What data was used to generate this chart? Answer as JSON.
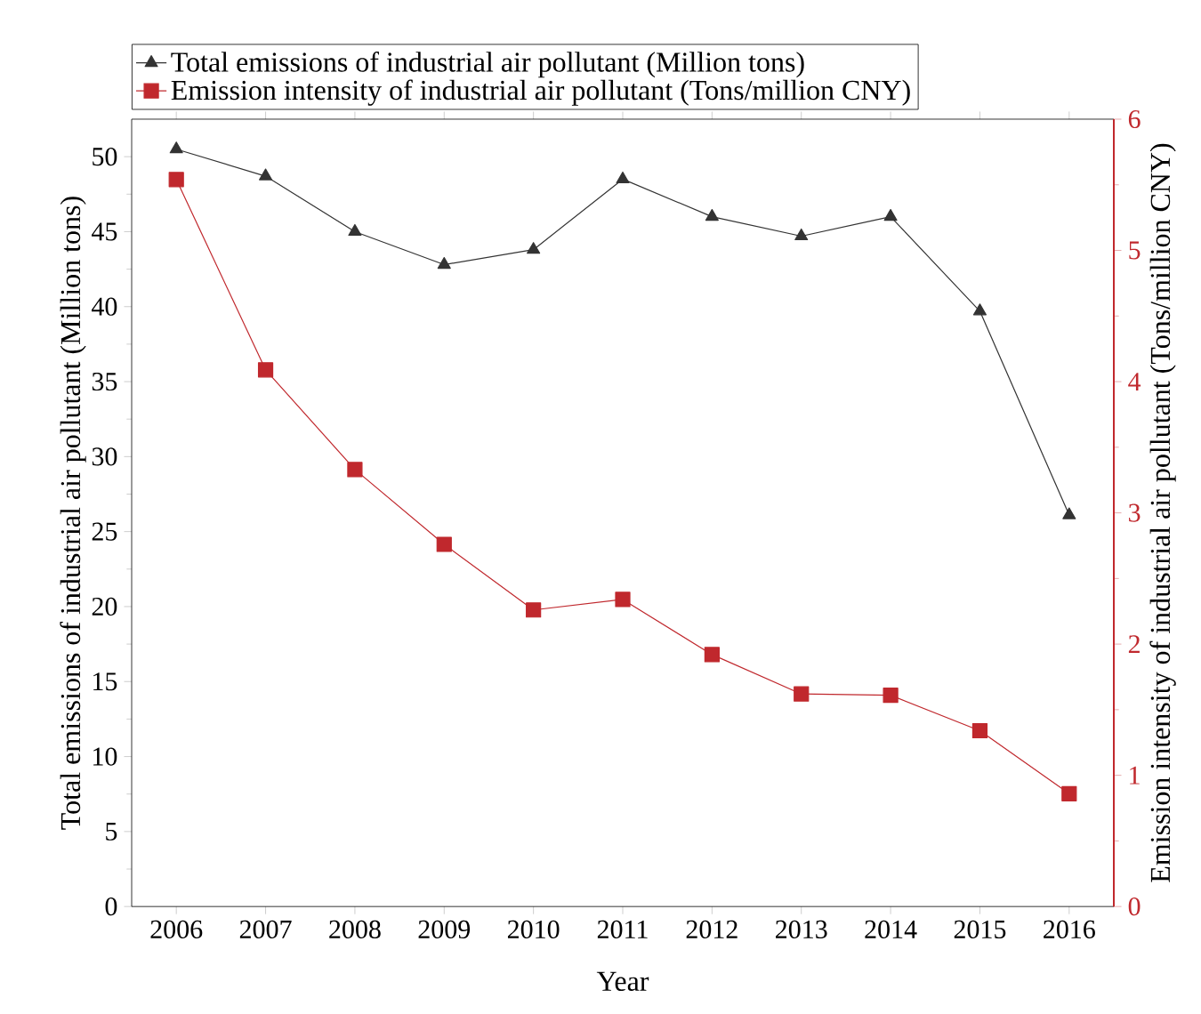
{
  "chart_data": {
    "type": "line",
    "xlabel": "Year",
    "ylabel": "Total emissions of industrial air pollutant (Million tons)",
    "y2label": "Emission intensity of industrial air pollutant (Tons/million CNY)",
    "x": [
      2006,
      2007,
      2008,
      2009,
      2010,
      2011,
      2012,
      2013,
      2014,
      2015,
      2016
    ],
    "xlim": [
      2005.5,
      2016.5
    ],
    "xticks": [
      2006,
      2007,
      2008,
      2009,
      2010,
      2011,
      2012,
      2013,
      2014,
      2015,
      2016
    ],
    "ylim": [
      0,
      52.5
    ],
    "yticks": [
      0,
      5,
      10,
      15,
      20,
      25,
      30,
      35,
      40,
      45,
      50
    ],
    "y2lim": [
      0,
      6
    ],
    "y2ticks": [
      0,
      1,
      2,
      3,
      4,
      5,
      6
    ],
    "legend": "top left",
    "line_style": "solid",
    "series": [
      {
        "name": "Total emissions of industrial air pollutant (Million tons)",
        "color": "#333333",
        "marker": "triangle",
        "values": [
          50.5,
          48.7,
          45.0,
          42.8,
          43.8,
          48.5,
          46.0,
          44.7,
          46.0,
          39.7,
          26.1
        ]
      },
      {
        "name": "Emission intensity of industrial air pollutant (Tons/million CNY)",
        "color": "#c0282d",
        "marker": "square",
        "axis": "y2",
        "values": [
          5.54,
          4.09,
          3.33,
          2.76,
          2.26,
          2.34,
          1.92,
          1.62,
          1.61,
          1.34,
          0.86
        ]
      }
    ]
  }
}
